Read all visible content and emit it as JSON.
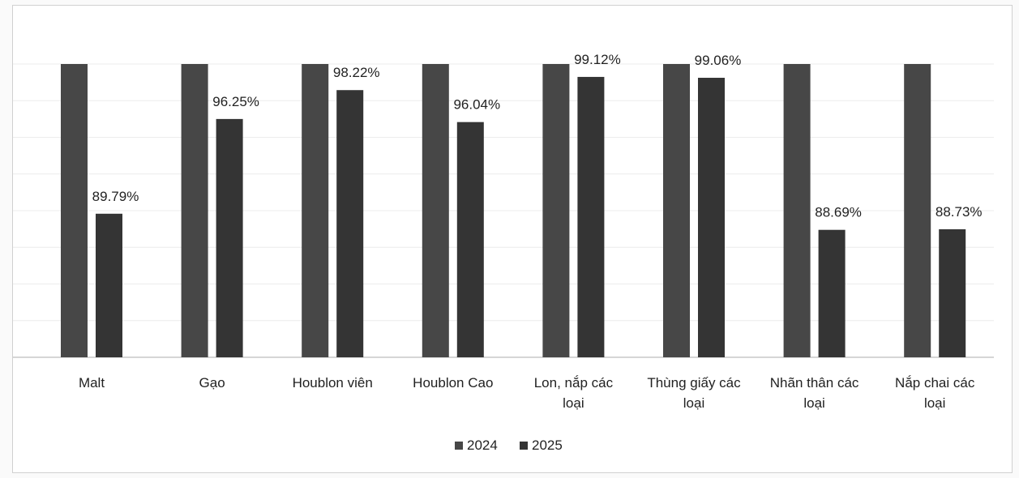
{
  "chart_data": {
    "type": "bar",
    "title": "",
    "xlabel": "",
    "ylabel": "",
    "ylim": [
      80,
      100
    ],
    "grid": true,
    "legend_position": "bottom-center",
    "categories": [
      [
        "Malt"
      ],
      [
        "Gạo"
      ],
      [
        "Houblon viên"
      ],
      [
        "Houblon Cao"
      ],
      [
        "Lon, nắp các",
        "loại"
      ],
      [
        "Thùng giấy các",
        "loại"
      ],
      [
        "Nhãn thân các",
        "loại"
      ],
      [
        "Nắp chai các",
        "loại"
      ]
    ],
    "series": [
      {
        "name": "2024",
        "color": "#474747",
        "values": [
          100,
          100,
          100,
          100,
          100,
          100,
          100,
          100
        ]
      },
      {
        "name": "2025",
        "color": "#343434",
        "values": [
          89.79,
          96.25,
          98.22,
          96.04,
          99.12,
          99.06,
          88.69,
          88.73
        ]
      }
    ],
    "data_labels": [
      "89.79%",
      "96.25%",
      "98.22%",
      "96.04%",
      "99.12%",
      "99.06%",
      "88.69%",
      "88.73%"
    ]
  }
}
